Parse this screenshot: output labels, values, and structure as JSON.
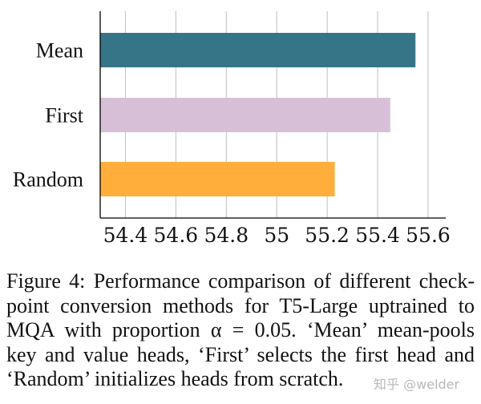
{
  "chart_data": {
    "type": "bar",
    "orientation": "horizontal",
    "categories": [
      "Mean",
      "First",
      "Random"
    ],
    "values": [
      55.55,
      55.45,
      55.23
    ],
    "colors": [
      "#367588",
      "#d8bfd8",
      "#ffae3c"
    ],
    "xticks": [
      "54.4",
      "54.6",
      "54.8",
      "55",
      "55.2",
      "55.4",
      "55.6"
    ],
    "xtick_values": [
      54.4,
      54.6,
      54.8,
      55.0,
      55.2,
      55.4,
      55.6
    ],
    "xlim": [
      54.3,
      55.67
    ],
    "grid": "vertical",
    "title": "",
    "xlabel": "",
    "ylabel": ""
  },
  "caption": {
    "lines": [
      "Figure 4: Performance comparison of different check-",
      "point conversion methods for T5-Large uptrained to",
      "MQA with proportion α = 0.05. ‘Mean’ mean-pools",
      "key and value heads, ‘First’ selects the first head and",
      "‘Random’ initializes heads from scratch."
    ]
  },
  "watermark": "知乎 @welder"
}
